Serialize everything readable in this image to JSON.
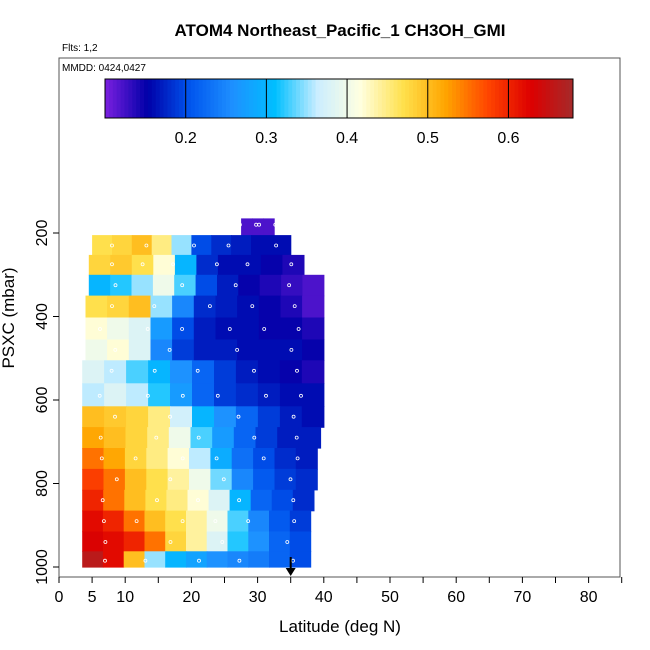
{
  "chart_data": {
    "type": "heatmap",
    "title": "ATOM4 Northeast_Pacific_1 CH3OH_GMI",
    "flights_label": "Flts: 1,2",
    "date_label": "MMDD: 0424,0427",
    "xlabel": "Latitude (deg N)",
    "ylabel": "PSXC (mbar)",
    "xlim": [
      0,
      85
    ],
    "ylim": [
      1000,
      100
    ],
    "x_ticks": [
      0,
      5,
      10,
      20,
      30,
      40,
      50,
      60,
      70,
      80
    ],
    "y_ticks": [
      200,
      400,
      600,
      800,
      1000
    ],
    "colorbar": {
      "range": [
        0.1,
        0.68
      ],
      "ticks": [
        0.2,
        0.3,
        0.4,
        0.5,
        0.6
      ],
      "colors": [
        "#7B1FE0",
        "#0000A8",
        "#0055EE",
        "#1E90FF",
        "#00BFFF",
        "#CCEEFF",
        "#FFFFE0",
        "#FFE14D",
        "#FFA500",
        "#FF4500",
        "#DD0000",
        "#A52A2A"
      ]
    },
    "marker": {
      "latitude": 35,
      "pressure": 1000
    },
    "rows": [
      {
        "pressure": 180,
        "lat_min": 27.5,
        "lat_max": 32.5,
        "values": [
          0.12,
          0.12,
          0.12
        ]
      },
      {
        "pressure": 230,
        "lat_min": 5,
        "lat_max": 35,
        "values": [
          0.47,
          0.48,
          0.5,
          0.45,
          0.35,
          0.2,
          0.18,
          0.17,
          0.16,
          0.16
        ]
      },
      {
        "pressure": 275,
        "lat_min": 4.5,
        "lat_max": 37,
        "values": [
          0.48,
          0.49,
          0.47,
          0.42,
          0.3,
          0.18,
          0.16,
          0.16,
          0.15,
          0.14
        ]
      },
      {
        "pressure": 325,
        "lat_min": 4.5,
        "lat_max": 40,
        "values": [
          0.3,
          0.32,
          0.35,
          0.4,
          0.33,
          0.2,
          0.17,
          0.15,
          0.14,
          0.13,
          0.12
        ]
      },
      {
        "pressure": 375,
        "lat_min": 4,
        "lat_max": 40,
        "values": [
          0.47,
          0.48,
          0.5,
          0.35,
          0.25,
          0.18,
          0.17,
          0.16,
          0.15,
          0.14,
          0.12
        ]
      },
      {
        "pressure": 430,
        "lat_min": 4,
        "lat_max": 40,
        "values": [
          0.42,
          0.4,
          0.38,
          0.27,
          0.2,
          0.17,
          0.16,
          0.16,
          0.15,
          0.15,
          0.14
        ]
      },
      {
        "pressure": 480,
        "lat_min": 4,
        "lat_max": 40,
        "values": [
          0.4,
          0.42,
          0.38,
          0.25,
          0.19,
          0.17,
          0.17,
          0.16,
          0.16,
          0.16,
          0.15
        ]
      },
      {
        "pressure": 530,
        "lat_min": 3.5,
        "lat_max": 40,
        "values": [
          0.38,
          0.36,
          0.33,
          0.3,
          0.26,
          0.22,
          0.19,
          0.17,
          0.16,
          0.15,
          0.14
        ]
      },
      {
        "pressure": 590,
        "lat_min": 3.5,
        "lat_max": 40,
        "values": [
          0.36,
          0.38,
          0.36,
          0.32,
          0.27,
          0.22,
          0.19,
          0.18,
          0.17,
          0.16,
          0.16
        ]
      },
      {
        "pressure": 640,
        "lat_min": 3.5,
        "lat_max": 40,
        "values": [
          0.5,
          0.49,
          0.48,
          0.45,
          0.37,
          0.3,
          0.26,
          0.22,
          0.19,
          0.17,
          0.16
        ]
      },
      {
        "pressure": 690,
        "lat_min": 3.5,
        "lat_max": 39.5,
        "values": [
          0.52,
          0.5,
          0.48,
          0.45,
          0.4,
          0.33,
          0.27,
          0.22,
          0.19,
          0.17,
          0.17
        ]
      },
      {
        "pressure": 740,
        "lat_min": 3.5,
        "lat_max": 39,
        "values": [
          0.55,
          0.52,
          0.48,
          0.45,
          0.42,
          0.36,
          0.29,
          0.23,
          0.2,
          0.18,
          0.17
        ]
      },
      {
        "pressure": 790,
        "lat_min": 3.5,
        "lat_max": 39,
        "values": [
          0.58,
          0.55,
          0.5,
          0.47,
          0.44,
          0.4,
          0.34,
          0.25,
          0.21,
          0.19,
          0.18
        ]
      },
      {
        "pressure": 840,
        "lat_min": 3.5,
        "lat_max": 38.5,
        "values": [
          0.6,
          0.55,
          0.5,
          0.47,
          0.45,
          0.42,
          0.38,
          0.3,
          0.22,
          0.2,
          0.18
        ]
      },
      {
        "pressure": 890,
        "lat_min": 3.5,
        "lat_max": 38,
        "values": [
          0.62,
          0.6,
          0.55,
          0.5,
          0.47,
          0.44,
          0.4,
          0.33,
          0.25,
          0.21,
          0.19
        ]
      },
      {
        "pressure": 940,
        "lat_min": 3.5,
        "lat_max": 38,
        "values": [
          0.63,
          0.62,
          0.6,
          0.55,
          0.48,
          0.44,
          0.38,
          0.32,
          0.26,
          0.22,
          0.2
        ]
      },
      {
        "pressure": 985,
        "lat_min": 3.5,
        "lat_max": 38,
        "values": [
          0.66,
          0.62,
          0.5,
          0.35,
          0.3,
          0.28,
          0.26,
          0.25,
          0.24,
          0.22,
          0.2
        ]
      }
    ]
  }
}
